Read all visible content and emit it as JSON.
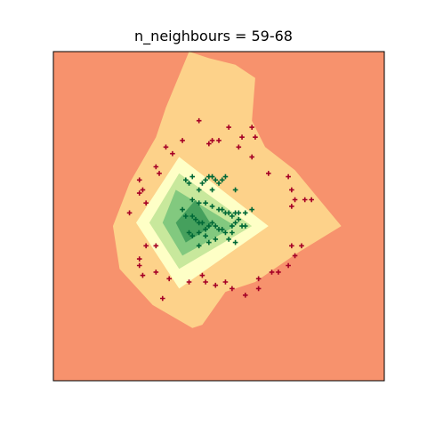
{
  "chart_data": {
    "type": "scatter",
    "title": "n_neighbours = 59-68",
    "xlabel": "",
    "ylabel": "",
    "ticks": "none",
    "grid": false,
    "legend": "none",
    "xlim": [
      0,
      100
    ],
    "ylim": [
      0,
      100
    ],
    "background": "#f7926d",
    "contour_levels": [
      {
        "level": 1,
        "color": "#fdd28a",
        "polygon": [
          [
            41,
            100
          ],
          [
            47,
            98
          ],
          [
            55,
            96
          ],
          [
            61,
            92
          ],
          [
            60,
            79
          ],
          [
            64,
            71
          ],
          [
            73,
            64
          ],
          [
            87,
            47
          ],
          [
            74,
            39
          ],
          [
            61,
            30
          ],
          [
            52,
            27
          ],
          [
            45,
            17
          ],
          [
            42,
            16
          ],
          [
            30,
            23
          ],
          [
            20,
            34
          ],
          [
            18,
            47
          ],
          [
            23,
            60
          ],
          [
            31,
            74
          ],
          [
            34,
            83
          ]
        ]
      },
      {
        "level": 2,
        "color": "#feffc6",
        "polygon": [
          [
            38,
            68
          ],
          [
            65,
            47
          ],
          [
            38,
            28
          ],
          [
            25,
            48
          ]
        ]
      },
      {
        "level": 3,
        "color": "#c8e89c",
        "polygon": [
          [
            38,
            63
          ],
          [
            60,
            47
          ],
          [
            38,
            34
          ],
          [
            29,
            48
          ]
        ]
      },
      {
        "level": 4,
        "color": "#82c97f",
        "polygon": [
          [
            37,
            58
          ],
          [
            55,
            47
          ],
          [
            39,
            38
          ],
          [
            33,
            48
          ]
        ]
      },
      {
        "level": 5,
        "color": "#45a05d",
        "polygon": [
          [
            43,
            55
          ],
          [
            48,
            47
          ],
          [
            40,
            42
          ],
          [
            37,
            48
          ]
        ]
      }
    ],
    "series": [
      {
        "color": "#a50026",
        "marker": "plus",
        "points": [
          [
            34,
            71
          ],
          [
            36,
            69
          ],
          [
            39,
            73
          ],
          [
            44,
            79
          ],
          [
            47,
            72
          ],
          [
            48,
            73
          ],
          [
            50,
            73
          ],
          [
            53,
            77
          ],
          [
            56,
            71
          ],
          [
            57,
            74
          ],
          [
            60,
            77
          ],
          [
            61,
            74
          ],
          [
            60,
            68
          ],
          [
            65,
            63
          ],
          [
            71,
            62
          ],
          [
            72,
            58
          ],
          [
            73,
            55
          ],
          [
            76,
            55
          ],
          [
            78,
            55
          ],
          [
            31,
            65
          ],
          [
            32,
            63
          ],
          [
            26,
            61
          ],
          [
            27,
            58
          ],
          [
            26,
            57
          ],
          [
            28,
            54
          ],
          [
            23,
            51
          ],
          [
            72,
            53
          ],
          [
            31,
            41
          ],
          [
            28,
            41
          ],
          [
            26,
            37
          ],
          [
            26,
            35
          ],
          [
            27,
            32
          ],
          [
            31,
            33
          ],
          [
            35,
            31
          ],
          [
            33,
            25
          ],
          [
            41,
            30
          ],
          [
            45,
            32
          ],
          [
            46,
            30
          ],
          [
            49,
            29
          ],
          [
            52,
            30
          ],
          [
            54,
            28
          ],
          [
            58,
            26
          ],
          [
            62,
            28
          ],
          [
            62,
            31
          ],
          [
            66,
            33
          ],
          [
            68,
            33
          ],
          [
            71,
            35
          ],
          [
            73,
            38
          ],
          [
            72,
            41
          ],
          [
            75,
            41
          ]
        ]
      },
      {
        "color": "#006837",
        "marker": "plus",
        "points": [
          [
            40,
            61
          ],
          [
            41,
            60
          ],
          [
            42,
            62
          ],
          [
            44,
            58
          ],
          [
            45,
            60
          ],
          [
            46,
            61
          ],
          [
            47,
            62
          ],
          [
            48,
            62
          ],
          [
            49,
            61
          ],
          [
            50,
            60
          ],
          [
            51,
            61
          ],
          [
            52,
            62
          ],
          [
            55,
            58
          ],
          [
            48,
            58
          ],
          [
            42,
            55
          ],
          [
            44,
            54
          ],
          [
            46,
            54
          ],
          [
            48,
            53
          ],
          [
            50,
            52
          ],
          [
            51,
            52
          ],
          [
            52,
            51
          ],
          [
            53,
            51
          ],
          [
            54,
            50
          ],
          [
            55,
            51
          ],
          [
            56,
            51
          ],
          [
            58,
            51
          ],
          [
            60,
            52
          ],
          [
            39,
            52
          ],
          [
            40,
            50
          ],
          [
            42,
            50
          ],
          [
            43,
            49
          ],
          [
            44,
            48
          ],
          [
            45,
            48
          ],
          [
            46,
            46
          ],
          [
            47,
            47
          ],
          [
            48,
            48
          ],
          [
            49,
            47
          ],
          [
            50,
            46
          ],
          [
            51,
            46
          ],
          [
            52,
            45
          ],
          [
            54,
            47
          ],
          [
            55,
            48
          ],
          [
            57,
            47
          ],
          [
            58,
            47
          ],
          [
            56,
            49
          ],
          [
            44,
            45
          ],
          [
            41,
            45
          ],
          [
            42,
            44
          ],
          [
            46,
            44
          ],
          [
            49,
            43
          ],
          [
            53,
            43
          ],
          [
            55,
            42
          ],
          [
            54,
            45
          ],
          [
            44,
            41
          ],
          [
            47,
            42
          ]
        ]
      }
    ]
  }
}
